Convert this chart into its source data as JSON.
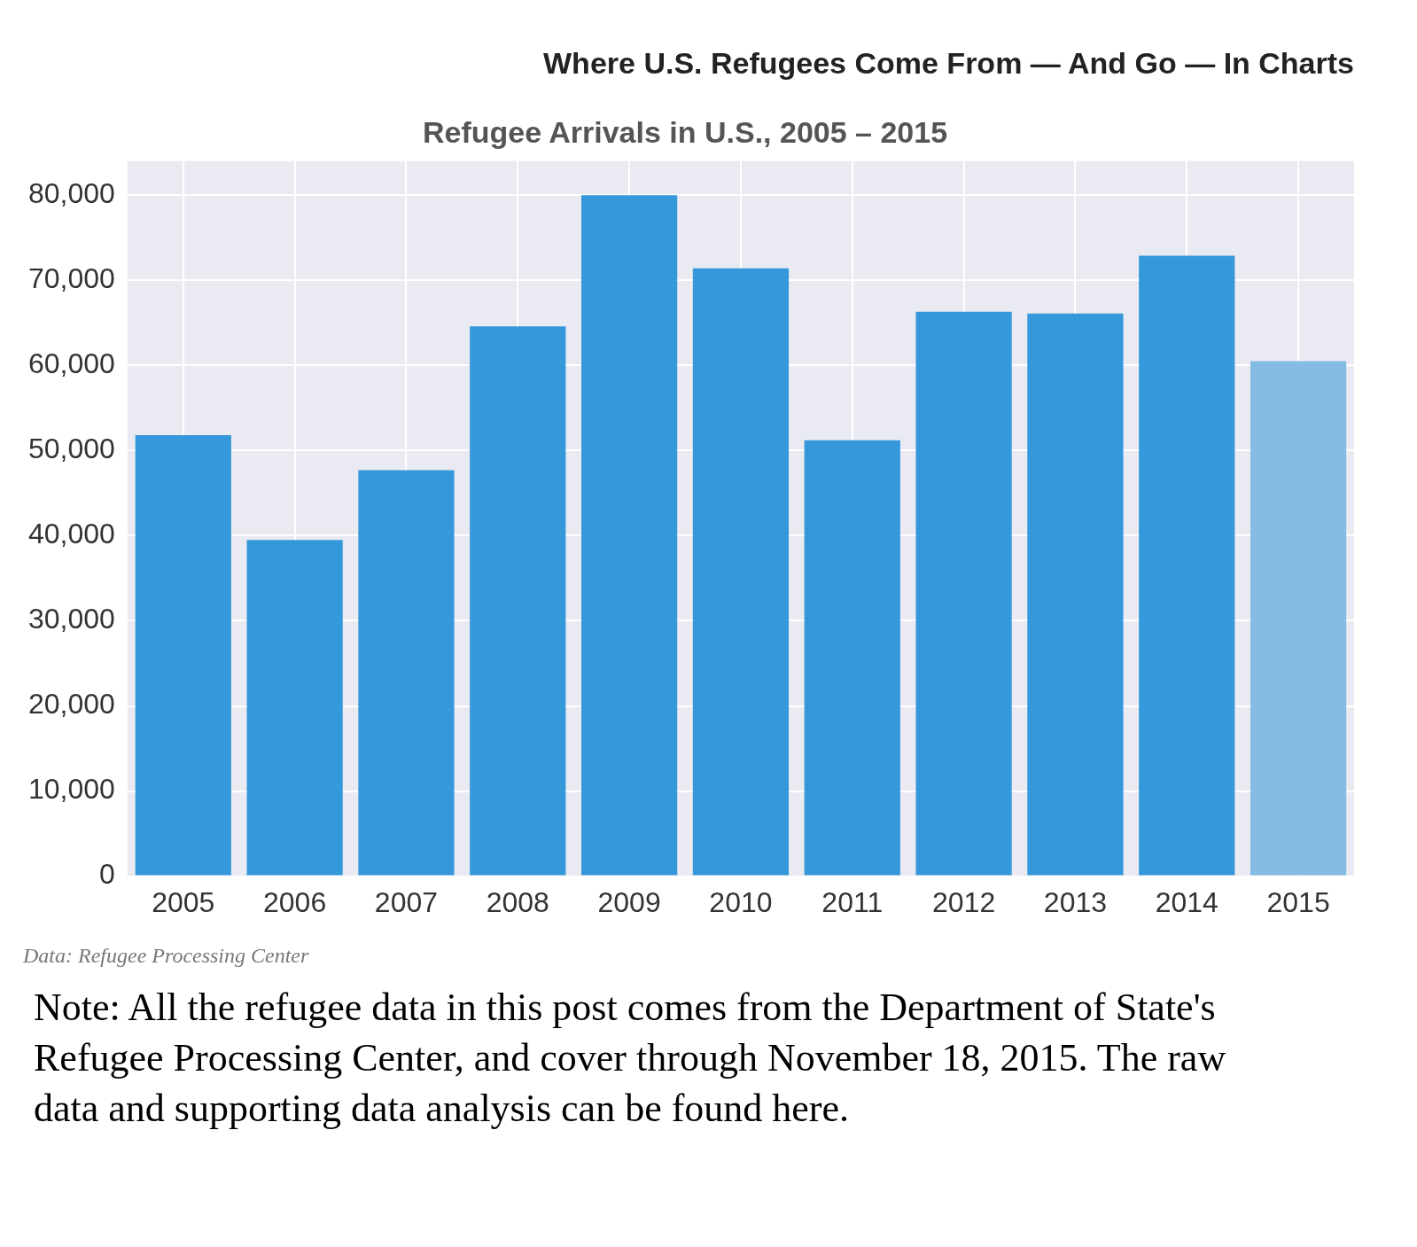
{
  "chart_data": {
    "type": "bar",
    "subtitle": "Where U.S. Refugees Come From — And Go — In Charts",
    "title": "Refugee Arrivals in U.S., 2005 – 2015",
    "categories": [
      "2005",
      "2006",
      "2007",
      "2008",
      "2009",
      "2010",
      "2011",
      "2012",
      "2013",
      "2014",
      "2015"
    ],
    "values": [
      51800,
      39500,
      47700,
      64600,
      80000,
      71400,
      51200,
      66300,
      66100,
      72900,
      60500
    ],
    "colors": [
      "#3498db",
      "#3498db",
      "#3498db",
      "#3498db",
      "#3498db",
      "#3498db",
      "#3498db",
      "#3498db",
      "#3498db",
      "#3498db",
      "#85bce4"
    ],
    "ylim": [
      0,
      84000
    ],
    "yticks": [
      0,
      {
        "value": 10000,
        "label": "10,000"
      },
      {
        "value": 20000,
        "label": "20,000"
      },
      {
        "value": 30000,
        "label": "30,000"
      },
      {
        "value": 40000,
        "label": "40,000"
      },
      {
        "value": 50000,
        "label": "50,000"
      },
      {
        "value": 60000,
        "label": "60,000"
      },
      {
        "value": 70000,
        "label": "70,000"
      },
      {
        "value": 80000,
        "label": "80,000"
      }
    ],
    "grid": true,
    "annotations": [
      "Data: Refugee Processing Center",
      "Note: All the refugee data in this post comes from the Department of State's Refugee Processing Center, and cover through November 18, 2015. The raw data and supporting data analysis can be found here."
    ]
  }
}
